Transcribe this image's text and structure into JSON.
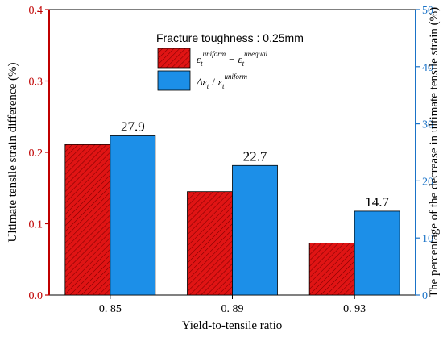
{
  "chart_data": {
    "type": "bar",
    "categories": [
      "0. 85",
      "0. 89",
      "0. 93"
    ],
    "series": [
      {
        "axis": "left",
        "color": "#e01414",
        "hatch": true,
        "values": [
          0.211,
          0.145,
          0.073
        ]
      },
      {
        "axis": "right",
        "color": "#1c8fe8",
        "values": [
          27.9,
          22.7,
          14.7
        ],
        "data_labels": [
          "27.9",
          "22.7",
          "14.7"
        ]
      }
    ],
    "xlabel": "Yield-to-tensile ratio",
    "ylabel_left": "Ultimate tensile strain difference  (%)",
    "ylabel_right": "The percentage of the decrease in ultimate tensile strain  (%)",
    "ylim_left": [
      0,
      0.4
    ],
    "yticks_left": [
      "0.0",
      "0.1",
      "0.2",
      "0.3",
      "0.4"
    ],
    "ylim_right": [
      0,
      50
    ],
    "yticks_right": [
      "0",
      "10",
      "20",
      "30",
      "40",
      "50"
    ],
    "grid": false,
    "legend": {
      "placement": "top-center",
      "title": "Fracture toughness : 0.25mm",
      "entry1": {
        "eps": "ε",
        "sub": "t",
        "sup1": "uniform",
        "minus": "−",
        "eps2": "ε",
        "sub2": "t",
        "sup2": "unequal"
      },
      "entry2": {
        "delta": "Δε",
        "sub": "t",
        "slash": "/",
        "eps": "ε",
        "sub2": "t",
        "sup": "uniform"
      }
    },
    "axis_colors": {
      "left": "#c00000",
      "right": "#1a73c8"
    }
  }
}
